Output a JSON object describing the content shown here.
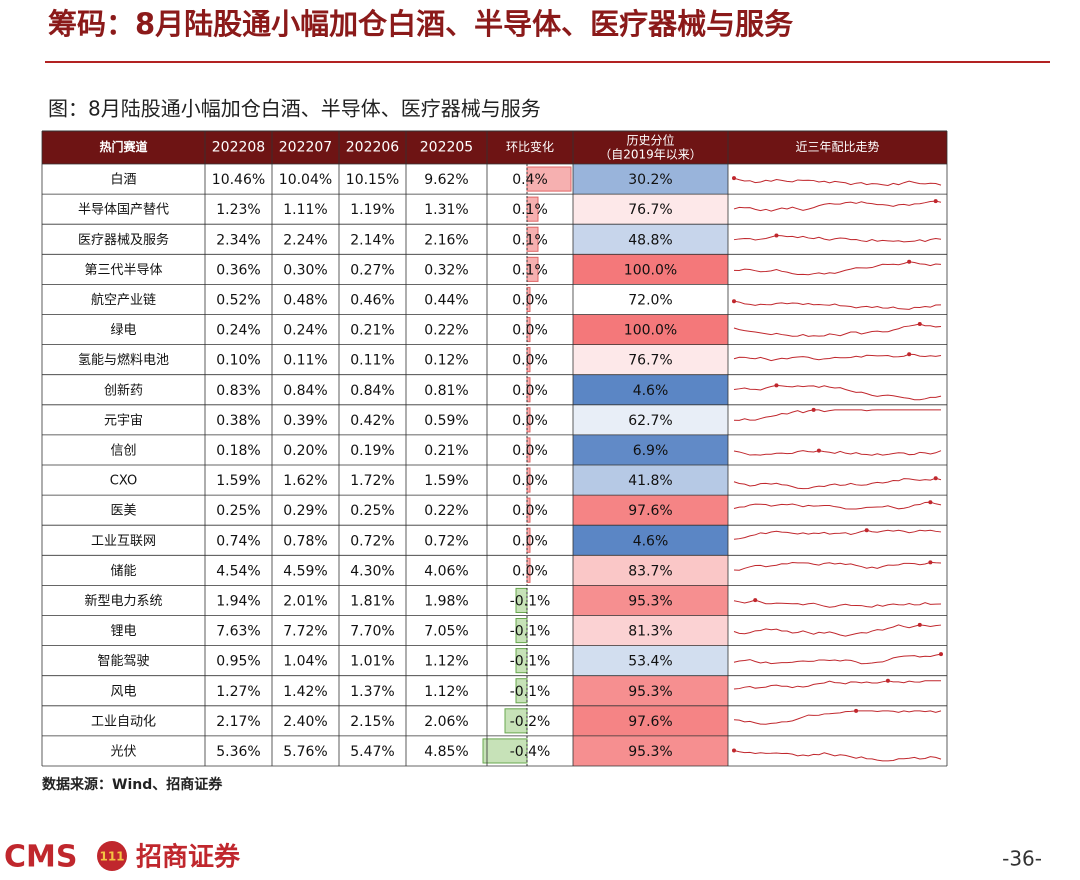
{
  "header": {
    "title": "筹码：8月陆股通小幅加仓白酒、半导体、医疗器械与服务"
  },
  "figure": {
    "caption": "图：8月陆股通小幅加仓白酒、半导体、医疗器械与服务",
    "columns": [
      "热门赛道",
      "202208",
      "202207",
      "202206",
      "202205",
      "环比变化",
      "历史分位",
      "近三年配比走势"
    ],
    "percentile_note": "（自2019年以来）",
    "rows": [
      [
        "白酒",
        "10.46%",
        "10.04%",
        "10.15%",
        "9.62%",
        "0.4%",
        "30.2%"
      ],
      [
        "半导体国产替代",
        "1.23%",
        "1.11%",
        "1.19%",
        "1.31%",
        "0.1%",
        "76.7%"
      ],
      [
        "医疗器械及服务",
        "2.34%",
        "2.24%",
        "2.14%",
        "2.16%",
        "0.1%",
        "48.8%"
      ],
      [
        "第三代半导体",
        "0.36%",
        "0.30%",
        "0.27%",
        "0.32%",
        "0.1%",
        "100.0%"
      ],
      [
        "航空产业链",
        "0.52%",
        "0.48%",
        "0.46%",
        "0.44%",
        "0.0%",
        "72.0%"
      ],
      [
        "绿电",
        "0.24%",
        "0.24%",
        "0.21%",
        "0.22%",
        "0.0%",
        "100.0%"
      ],
      [
        "氢能与燃料电池",
        "0.10%",
        "0.11%",
        "0.11%",
        "0.12%",
        "0.0%",
        "76.7%"
      ],
      [
        "创新药",
        "0.83%",
        "0.84%",
        "0.84%",
        "0.81%",
        "0.0%",
        "4.6%"
      ],
      [
        "元宇宙",
        "0.38%",
        "0.39%",
        "0.42%",
        "0.59%",
        "0.0%",
        "62.7%"
      ],
      [
        "信创",
        "0.18%",
        "0.20%",
        "0.19%",
        "0.21%",
        "0.0%",
        "6.9%"
      ],
      [
        "CXO",
        "1.59%",
        "1.62%",
        "1.72%",
        "1.59%",
        "0.0%",
        "41.8%"
      ],
      [
        "医美",
        "0.25%",
        "0.29%",
        "0.25%",
        "0.22%",
        "0.0%",
        "97.6%"
      ],
      [
        "工业互联网",
        "0.74%",
        "0.78%",
        "0.72%",
        "0.72%",
        "0.0%",
        "4.6%"
      ],
      [
        "储能",
        "4.54%",
        "4.59%",
        "4.30%",
        "4.06%",
        "0.0%",
        "83.7%"
      ],
      [
        "新型电力系统",
        "1.94%",
        "2.01%",
        "1.81%",
        "1.98%",
        "-0.1%",
        "95.3%"
      ],
      [
        "锂电",
        "7.63%",
        "7.72%",
        "7.70%",
        "7.05%",
        "-0.1%",
        "81.3%"
      ],
      [
        "智能驾驶",
        "0.95%",
        "1.04%",
        "1.01%",
        "1.12%",
        "-0.1%",
        "53.4%"
      ],
      [
        "风电",
        "1.27%",
        "1.42%",
        "1.37%",
        "1.12%",
        "-0.1%",
        "95.3%"
      ],
      [
        "工业自动化",
        "2.17%",
        "2.40%",
        "2.15%",
        "2.06%",
        "-0.2%",
        "97.6%"
      ],
      [
        "光伏",
        "5.36%",
        "5.76%",
        "5.47%",
        "4.85%",
        "-0.4%",
        "95.3%"
      ]
    ]
  },
  "source": "数据来源：Wind、招商证券",
  "footer": {
    "logo": "CMS",
    "company": "招商证券",
    "page": "-36-"
  }
}
